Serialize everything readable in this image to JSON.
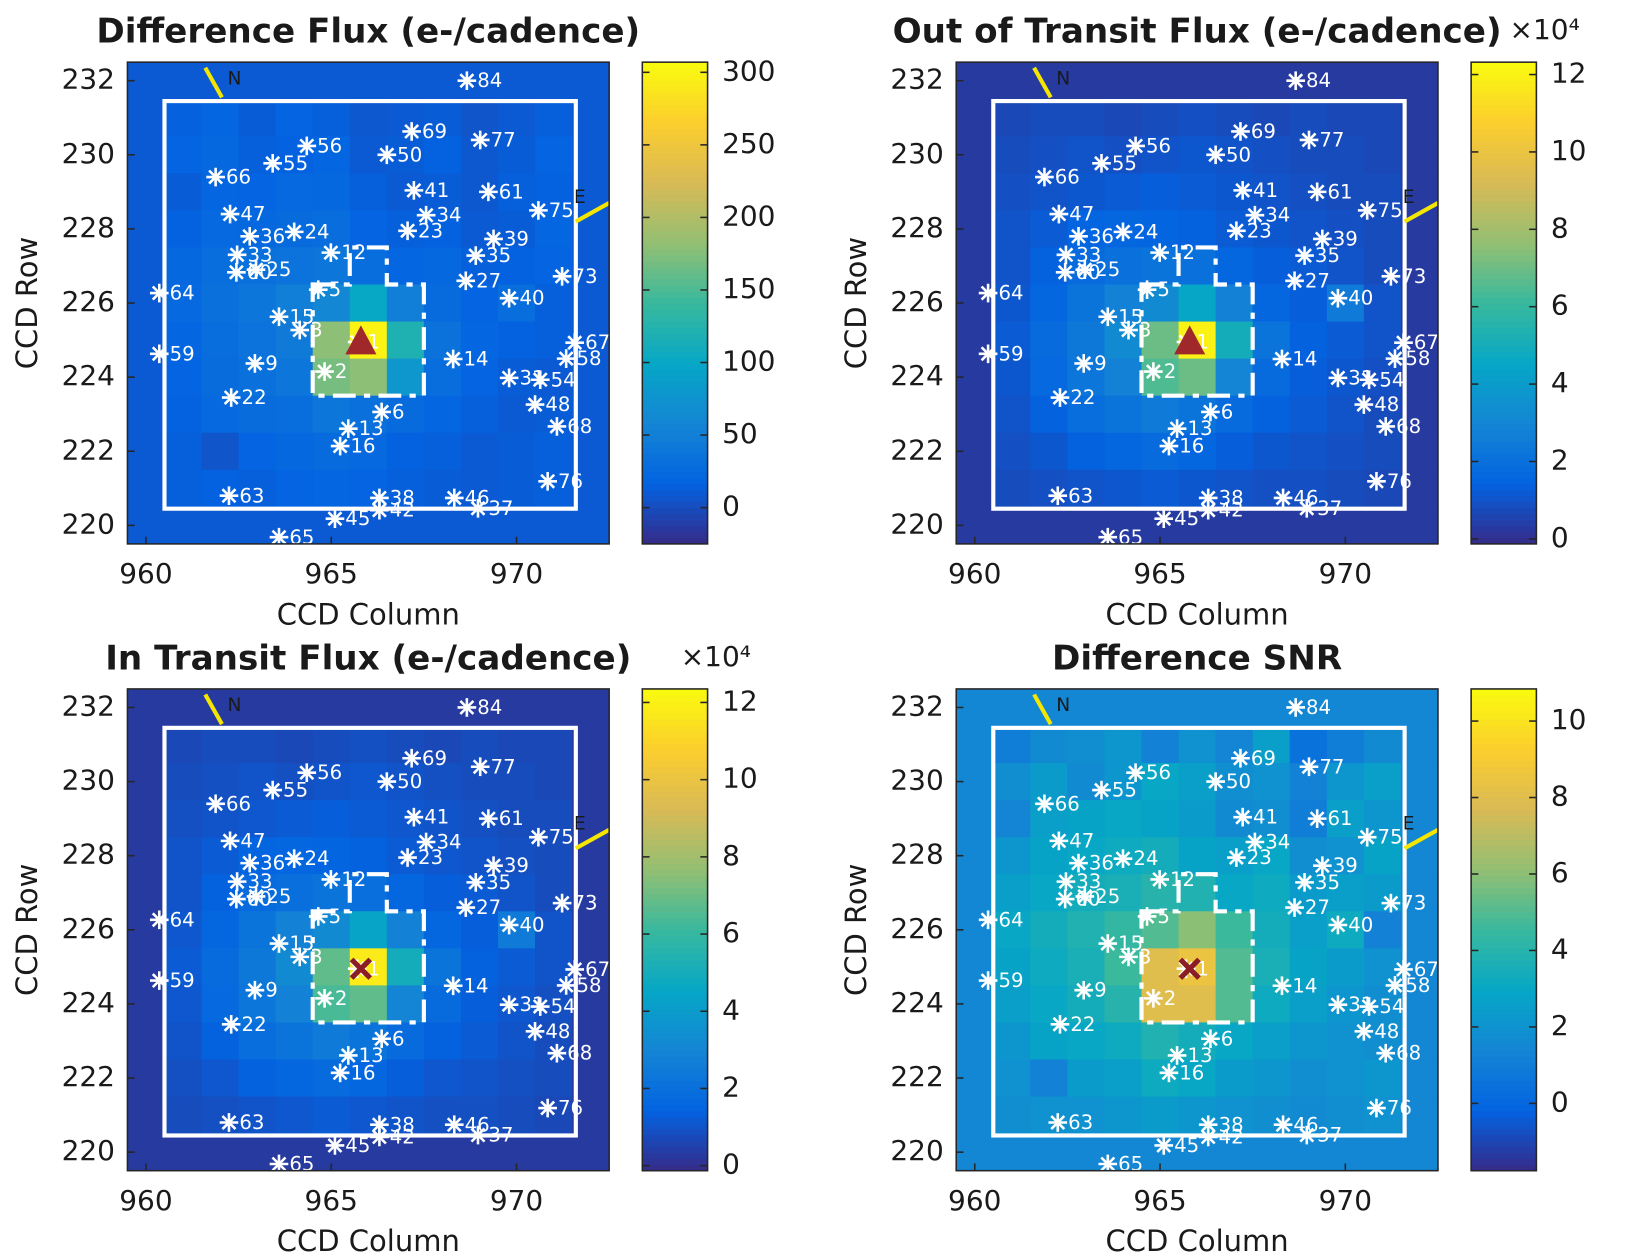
{
  "chart_data": [
    {
      "type": "heatmap",
      "title": "Difference Flux (e-/cadence)",
      "x_label": "CCD Column",
      "y_label": "CCD Row",
      "xlim": [
        959.5,
        972.5
      ],
      "ylim": [
        219.5,
        232.5
      ],
      "xticks": [
        960,
        965,
        970
      ],
      "yticks": [
        220,
        222,
        224,
        226,
        228,
        230,
        232
      ],
      "clim": [
        -25,
        307
      ],
      "colorbar_ticks": [
        0,
        50,
        100,
        150,
        200,
        250,
        300
      ],
      "centroid": {
        "x": 965.8,
        "y": 224.95,
        "marker": "triangle",
        "color": "#a0282a"
      },
      "x": [
        960,
        961,
        962,
        963,
        964,
        965,
        966,
        967,
        968,
        969,
        970,
        971,
        972
      ],
      "y": [
        232,
        231,
        230,
        229,
        228,
        227,
        226,
        225,
        224,
        223,
        222,
        221,
        220
      ],
      "z": [
        [
          10,
          10,
          10,
          10,
          10,
          10,
          10,
          10,
          10,
          10,
          10,
          10,
          10
        ],
        [
          10,
          15,
          20,
          12,
          18,
          14,
          8,
          10,
          12,
          6,
          10,
          14,
          10
        ],
        [
          10,
          18,
          22,
          14,
          16,
          20,
          10,
          12,
          16,
          8,
          12,
          18,
          10
        ],
        [
          10,
          12,
          20,
          18,
          24,
          22,
          14,
          10,
          12,
          8,
          14,
          16,
          10
        ],
        [
          10,
          16,
          24,
          22,
          26,
          30,
          18,
          14,
          16,
          10,
          12,
          20,
          10
        ],
        [
          10,
          22,
          30,
          34,
          36,
          40,
          30,
          20,
          22,
          14,
          16,
          18,
          10
        ],
        [
          10,
          24,
          32,
          40,
          50,
          60,
          100,
          50,
          26,
          18,
          30,
          14,
          10
        ],
        [
          10,
          20,
          30,
          36,
          45,
          180,
          300,
          120,
          35,
          20,
          16,
          14,
          10
        ],
        [
          10,
          18,
          28,
          34,
          40,
          170,
          180,
          80,
          30,
          18,
          12,
          10,
          10
        ],
        [
          10,
          16,
          24,
          28,
          30,
          40,
          34,
          26,
          20,
          14,
          10,
          12,
          10
        ],
        [
          10,
          14,
          6,
          18,
          22,
          26,
          24,
          16,
          14,
          10,
          12,
          14,
          10
        ],
        [
          10,
          14,
          16,
          14,
          18,
          20,
          18,
          14,
          12,
          10,
          12,
          14,
          10
        ],
        [
          10,
          10,
          10,
          10,
          10,
          10,
          10,
          10,
          10,
          10,
          10,
          10,
          10
        ]
      ]
    },
    {
      "type": "heatmap",
      "title": "Out of Transit Flux (e-/cadence)",
      "x_label": "CCD Column",
      "y_label": "CCD Row",
      "colorbar_multiplier": "×10⁴",
      "xlim": [
        959.5,
        972.5
      ],
      "ylim": [
        219.5,
        232.5
      ],
      "xticks": [
        960,
        965,
        970
      ],
      "yticks": [
        220,
        222,
        224,
        226,
        228,
        230,
        232
      ],
      "clim": [
        -0.13,
        12.32
      ],
      "colorbar_ticks": [
        0,
        2,
        4,
        6,
        8,
        10,
        12
      ],
      "centroid": {
        "x": 965.8,
        "y": 224.95,
        "marker": "triangle",
        "color": "#a0282a"
      },
      "x": [
        960,
        961,
        962,
        963,
        964,
        965,
        966,
        967,
        968,
        969,
        970,
        971,
        972
      ],
      "y": [
        232,
        231,
        230,
        229,
        228,
        227,
        226,
        225,
        224,
        223,
        222,
        221,
        220
      ],
      "z": [
        [
          0.3,
          0.3,
          0.3,
          0.3,
          0.3,
          0.3,
          0.3,
          0.3,
          0.3,
          0.3,
          0.3,
          0.3,
          0.3
        ],
        [
          0.3,
          0.7,
          0.8,
          0.8,
          0.7,
          0.8,
          0.9,
          0.8,
          0.7,
          0.8,
          0.7,
          0.7,
          0.3
        ],
        [
          0.3,
          0.8,
          0.9,
          1.0,
          0.9,
          1.0,
          1.1,
          1.0,
          0.9,
          0.8,
          0.8,
          0.7,
          0.3
        ],
        [
          0.3,
          0.9,
          1.0,
          1.1,
          1.2,
          1.3,
          1.2,
          1.1,
          1.0,
          0.9,
          0.8,
          0.8,
          0.3
        ],
        [
          0.3,
          1.0,
          1.2,
          1.5,
          1.6,
          1.5,
          1.4,
          1.2,
          1.1,
          1.0,
          0.9,
          0.8,
          0.3
        ],
        [
          0.3,
          1.0,
          1.4,
          1.8,
          2.0,
          2.2,
          2.0,
          1.6,
          1.3,
          1.2,
          1.0,
          0.8,
          0.3
        ],
        [
          0.3,
          1.1,
          1.6,
          2.2,
          2.8,
          3.2,
          4.5,
          2.8,
          1.6,
          1.3,
          2.5,
          1.0,
          0.3
        ],
        [
          0.3,
          1.2,
          1.8,
          2.4,
          3.2,
          7.0,
          12.0,
          5.0,
          2.2,
          1.4,
          1.2,
          1.0,
          0.3
        ],
        [
          0.3,
          1.1,
          1.7,
          2.3,
          2.8,
          6.5,
          7.0,
          3.0,
          1.8,
          1.3,
          1.1,
          0.9,
          0.3
        ],
        [
          0.3,
          1.0,
          1.4,
          1.9,
          2.2,
          2.5,
          2.2,
          1.8,
          1.4,
          1.2,
          1.0,
          0.8,
          0.3
        ],
        [
          0.3,
          0.9,
          1.1,
          1.4,
          1.6,
          1.8,
          1.6,
          1.3,
          1.1,
          1.0,
          0.9,
          0.8,
          0.3
        ],
        [
          0.3,
          0.8,
          0.9,
          1.0,
          1.1,
          1.2,
          1.1,
          1.0,
          0.9,
          0.9,
          0.8,
          0.7,
          0.3
        ],
        [
          0.3,
          0.3,
          0.3,
          0.3,
          0.3,
          0.3,
          0.3,
          0.3,
          0.3,
          0.3,
          0.3,
          0.3,
          0.3
        ]
      ]
    },
    {
      "type": "heatmap",
      "title": "In Transit Flux (e-/cadence)",
      "x_label": "CCD Column",
      "y_label": "CCD Row",
      "colorbar_multiplier": "×10⁴",
      "xlim": [
        959.5,
        972.5
      ],
      "ylim": [
        219.5,
        232.5
      ],
      "xticks": [
        960,
        965,
        970
      ],
      "yticks": [
        220,
        222,
        224,
        226,
        228,
        230,
        232
      ],
      "clim": [
        -0.13,
        12.35
      ],
      "colorbar_ticks": [
        0,
        2,
        4,
        6,
        8,
        10,
        12
      ],
      "centroid": {
        "x": 965.8,
        "y": 224.95,
        "marker": "x",
        "color": "#8b1e24"
      },
      "x": [
        960,
        961,
        962,
        963,
        964,
        965,
        966,
        967,
        968,
        969,
        970,
        971,
        972
      ],
      "y": [
        232,
        231,
        230,
        229,
        228,
        227,
        226,
        225,
        224,
        223,
        222,
        221,
        220
      ],
      "z": [
        [
          0.3,
          0.3,
          0.3,
          0.3,
          0.3,
          0.3,
          0.3,
          0.3,
          0.3,
          0.3,
          0.3,
          0.3,
          0.3
        ],
        [
          0.3,
          0.7,
          0.8,
          0.8,
          0.7,
          0.8,
          0.9,
          0.8,
          0.7,
          0.8,
          0.7,
          0.7,
          0.3
        ],
        [
          0.3,
          0.8,
          0.9,
          1.0,
          0.9,
          1.0,
          1.1,
          1.0,
          0.9,
          0.8,
          0.8,
          0.7,
          0.3
        ],
        [
          0.3,
          0.9,
          1.0,
          1.1,
          1.2,
          1.3,
          1.2,
          1.1,
          1.0,
          0.9,
          0.8,
          0.8,
          0.3
        ],
        [
          0.3,
          1.0,
          1.2,
          1.5,
          1.6,
          1.5,
          1.4,
          1.2,
          1.1,
          1.0,
          0.9,
          0.8,
          0.3
        ],
        [
          0.3,
          1.0,
          1.4,
          1.8,
          2.0,
          2.2,
          2.0,
          1.6,
          1.3,
          1.2,
          1.0,
          0.8,
          0.3
        ],
        [
          0.3,
          1.1,
          1.6,
          2.2,
          2.8,
          3.2,
          4.4,
          2.8,
          1.6,
          1.3,
          2.5,
          1.0,
          0.3
        ],
        [
          0.3,
          1.2,
          1.8,
          2.4,
          3.2,
          6.8,
          11.8,
          5.0,
          2.2,
          1.4,
          1.2,
          1.0,
          0.3
        ],
        [
          0.3,
          1.1,
          1.7,
          2.3,
          2.8,
          6.4,
          6.8,
          3.0,
          1.8,
          1.3,
          1.1,
          0.9,
          0.3
        ],
        [
          0.3,
          1.0,
          1.4,
          1.9,
          2.2,
          2.5,
          2.2,
          1.8,
          1.4,
          1.2,
          1.0,
          0.8,
          0.3
        ],
        [
          0.3,
          0.9,
          1.1,
          1.4,
          1.6,
          1.8,
          1.6,
          1.3,
          1.1,
          1.0,
          0.9,
          0.8,
          0.3
        ],
        [
          0.3,
          0.8,
          0.9,
          1.0,
          1.1,
          1.2,
          1.1,
          1.0,
          0.9,
          0.9,
          0.8,
          0.7,
          0.3
        ],
        [
          0.3,
          0.3,
          0.3,
          0.3,
          0.3,
          0.3,
          0.3,
          0.3,
          0.3,
          0.3,
          0.3,
          0.3,
          0.3
        ]
      ]
    },
    {
      "type": "heatmap",
      "title": "Difference SNR",
      "x_label": "CCD Column",
      "y_label": "CCD Row",
      "xlim": [
        959.5,
        972.5
      ],
      "ylim": [
        219.5,
        232.5
      ],
      "xticks": [
        960,
        965,
        970
      ],
      "yticks": [
        220,
        222,
        224,
        226,
        228,
        230,
        232
      ],
      "clim": [
        -1.76,
        10.84
      ],
      "colorbar_ticks": [
        0,
        2,
        4,
        6,
        8,
        10
      ],
      "centroid": {
        "x": 965.8,
        "y": 224.95,
        "marker": "x",
        "color": "#8b1e24"
      },
      "x": [
        960,
        961,
        962,
        963,
        964,
        965,
        966,
        967,
        968,
        969,
        970,
        971,
        972
      ],
      "y": [
        232,
        231,
        230,
        229,
        228,
        227,
        226,
        225,
        224,
        223,
        222,
        221,
        220
      ],
      "z": [
        [
          1.5,
          1.5,
          1.5,
          1.5,
          1.5,
          1.5,
          1.5,
          1.5,
          1.5,
          1.5,
          1.5,
          1.5,
          1.5
        ],
        [
          1.5,
          1.0,
          1.6,
          1.8,
          2.2,
          1.2,
          2.0,
          1.4,
          2.6,
          0.5,
          1.0,
          1.6,
          1.5
        ],
        [
          1.5,
          1.8,
          2.4,
          1.6,
          2.2,
          3.0,
          2.6,
          1.8,
          2.0,
          1.2,
          2.2,
          2.6,
          1.5
        ],
        [
          1.5,
          1.4,
          2.6,
          2.8,
          3.0,
          2.8,
          2.4,
          1.6,
          1.8,
          1.0,
          2.6,
          2.2,
          1.5
        ],
        [
          1.5,
          2.2,
          2.8,
          3.0,
          3.2,
          3.4,
          2.8,
          2.6,
          3.0,
          1.8,
          2.0,
          2.8,
          1.5
        ],
        [
          1.5,
          2.6,
          3.0,
          3.4,
          3.6,
          4.0,
          3.8,
          3.0,
          3.2,
          2.4,
          2.6,
          2.4,
          1.5
        ],
        [
          1.5,
          3.0,
          3.4,
          3.8,
          4.4,
          5.0,
          6.0,
          4.6,
          3.4,
          2.6,
          3.2,
          1.2,
          1.5
        ],
        [
          1.5,
          2.8,
          3.2,
          3.6,
          4.6,
          8.0,
          8.5,
          5.0,
          3.6,
          2.8,
          2.4,
          2.0,
          1.5
        ],
        [
          1.5,
          2.6,
          3.0,
          3.4,
          4.0,
          8.0,
          8.0,
          5.0,
          3.2,
          2.6,
          2.2,
          1.8,
          1.5
        ],
        [
          1.5,
          2.2,
          2.8,
          3.0,
          3.2,
          3.8,
          3.4,
          3.0,
          2.6,
          2.2,
          2.0,
          1.8,
          1.5
        ],
        [
          1.5,
          2.0,
          1.2,
          2.4,
          2.6,
          3.2,
          3.0,
          2.4,
          2.2,
          1.8,
          2.0,
          2.2,
          1.5
        ],
        [
          1.5,
          1.8,
          2.0,
          2.0,
          2.2,
          2.4,
          2.2,
          2.0,
          1.8,
          1.6,
          1.8,
          2.0,
          1.5
        ],
        [
          1.5,
          1.5,
          1.5,
          1.5,
          1.5,
          1.5,
          1.5,
          1.5,
          1.5,
          1.5,
          1.5,
          1.5,
          1.5
        ]
      ]
    }
  ],
  "compass": {
    "north": "N",
    "east": "E"
  },
  "stars": [
    {
      "label": "84",
      "x": 968.66,
      "y": 232.0
    },
    {
      "label": "56",
      "x": 964.34,
      "y": 230.24
    },
    {
      "label": "55",
      "x": 963.42,
      "y": 229.77
    },
    {
      "label": "66",
      "x": 961.88,
      "y": 229.4
    },
    {
      "label": "69",
      "x": 967.17,
      "y": 230.63
    },
    {
      "label": "77",
      "x": 969.02,
      "y": 230.4
    },
    {
      "label": "50",
      "x": 966.5,
      "y": 230.0
    },
    {
      "label": "41",
      "x": 967.23,
      "y": 229.04
    },
    {
      "label": "61",
      "x": 969.24,
      "y": 229.0
    },
    {
      "label": "47",
      "x": 962.27,
      "y": 228.4
    },
    {
      "label": "34",
      "x": 967.56,
      "y": 228.37
    },
    {
      "label": "75",
      "x": 970.59,
      "y": 228.5
    },
    {
      "label": "24",
      "x": 964.0,
      "y": 227.92
    },
    {
      "label": "36",
      "x": 962.8,
      "y": 227.8
    },
    {
      "label": "23",
      "x": 967.06,
      "y": 227.95
    },
    {
      "label": "39",
      "x": 969.38,
      "y": 227.73
    },
    {
      "label": "35",
      "x": 968.9,
      "y": 227.28
    },
    {
      "label": "33",
      "x": 962.46,
      "y": 227.3
    },
    {
      "label": "12",
      "x": 964.99,
      "y": 227.36
    },
    {
      "label": "60",
      "x": 962.44,
      "y": 226.83
    },
    {
      "label": "25",
      "x": 962.97,
      "y": 226.9
    },
    {
      "label": "27",
      "x": 968.63,
      "y": 226.6
    },
    {
      "label": "73",
      "x": 971.23,
      "y": 226.72
    },
    {
      "label": "64",
      "x": 960.36,
      "y": 226.27
    },
    {
      "label": "5",
      "x": 964.65,
      "y": 226.36
    },
    {
      "label": "40",
      "x": 969.8,
      "y": 226.13
    },
    {
      "label": "15",
      "x": 963.59,
      "y": 225.63
    },
    {
      "label": "3",
      "x": 964.15,
      "y": 225.27
    },
    {
      "label": "1",
      "x": 965.7,
      "y": 224.95
    },
    {
      "label": "59",
      "x": 960.36,
      "y": 224.63
    },
    {
      "label": "14",
      "x": 968.29,
      "y": 224.49
    },
    {
      "label": "2",
      "x": 964.82,
      "y": 224.15
    },
    {
      "label": "9",
      "x": 962.94,
      "y": 224.37
    },
    {
      "label": "67",
      "x": 971.57,
      "y": 224.93
    },
    {
      "label": "58",
      "x": 971.34,
      "y": 224.5
    },
    {
      "label": "54",
      "x": 970.64,
      "y": 223.93
    },
    {
      "label": "31",
      "x": 969.8,
      "y": 223.98
    },
    {
      "label": "22",
      "x": 962.3,
      "y": 223.45
    },
    {
      "label": "6",
      "x": 966.36,
      "y": 223.06
    },
    {
      "label": "48",
      "x": 970.5,
      "y": 223.26
    },
    {
      "label": "68",
      "x": 971.09,
      "y": 222.67
    },
    {
      "label": "13",
      "x": 965.46,
      "y": 222.61
    },
    {
      "label": "16",
      "x": 965.24,
      "y": 222.14
    },
    {
      "label": "63",
      "x": 962.24,
      "y": 220.8
    },
    {
      "label": "38",
      "x": 966.3,
      "y": 220.74
    },
    {
      "label": "46",
      "x": 968.32,
      "y": 220.74
    },
    {
      "label": "37",
      "x": 968.96,
      "y": 220.46
    },
    {
      "label": "76",
      "x": 970.84,
      "y": 221.19
    },
    {
      "label": "42",
      "x": 966.3,
      "y": 220.41
    },
    {
      "label": "45",
      "x": 965.1,
      "y": 220.18
    },
    {
      "label": "65",
      "x": 963.59,
      "y": 219.68
    }
  ]
}
